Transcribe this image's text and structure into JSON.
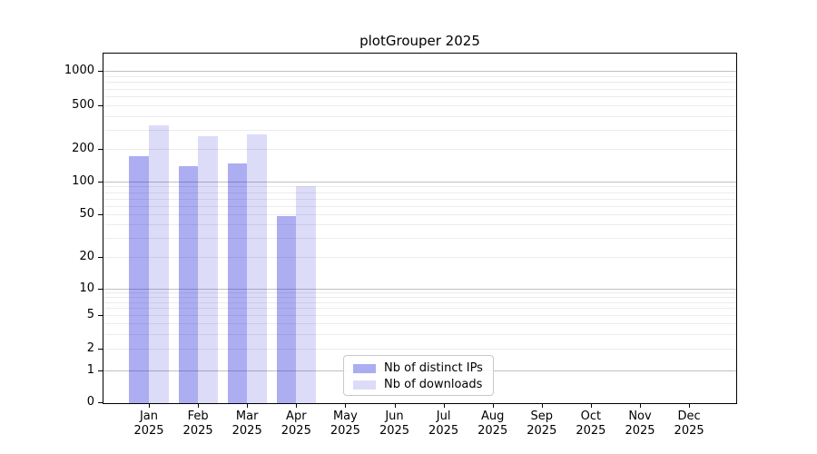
{
  "title": "plotGrouper 2025",
  "legend": {
    "items": [
      {
        "label": "Nb of distinct IPs",
        "series": "ips"
      },
      {
        "label": "Nb of downloads",
        "series": "downloads"
      }
    ]
  },
  "y_axis": {
    "tick_labels": [
      "0",
      "1",
      "2",
      "5",
      "10",
      "20",
      "50",
      "100",
      "200",
      "500",
      "1000"
    ],
    "tick_values": [
      0,
      1,
      2,
      5,
      10,
      20,
      50,
      100,
      200,
      500,
      1000
    ]
  },
  "x_axis": {
    "months": [
      "Jan",
      "Feb",
      "Mar",
      "Apr",
      "May",
      "Jun",
      "Jul",
      "Aug",
      "Sep",
      "Oct",
      "Nov",
      "Dec"
    ],
    "year": "2025"
  },
  "colors": {
    "ips": "rgba(20,20,215,0.35)",
    "downloads": "rgba(20,20,215,0.15)",
    "ips_hex": "#a8a8f1",
    "downloads_hex": "#dcdcf9",
    "grid_minor": "#ececec",
    "grid_major": "#c0c0c0",
    "spine": "#000000",
    "legend_border": "#c9c9c9"
  },
  "chart_data": {
    "type": "bar",
    "title": "plotGrouper 2025",
    "categories": [
      "Jan 2025",
      "Feb 2025",
      "Mar 2025",
      "Apr 2025",
      "May 2025",
      "Jun 2025",
      "Jul 2025",
      "Aug 2025",
      "Sep 2025",
      "Oct 2025",
      "Nov 2025",
      "Dec 2025"
    ],
    "series": [
      {
        "name": "Nb of distinct IPs",
        "values": [
          170,
          140,
          148,
          48,
          0,
          0,
          0,
          0,
          0,
          0,
          0,
          0
        ]
      },
      {
        "name": "Nb of downloads",
        "values": [
          330,
          260,
          270,
          90,
          0,
          0,
          0,
          0,
          0,
          0,
          0,
          0
        ]
      }
    ],
    "xlabel": "",
    "ylabel": "",
    "yscale": "symlog",
    "y_ticks": [
      0,
      1,
      2,
      5,
      10,
      20,
      50,
      100,
      200,
      500,
      1000
    ],
    "ylim": [
      0,
      1400
    ],
    "grid": "horizontal; light minor log lines, darker decade lines",
    "legend_position": "inside lower-center-left"
  }
}
